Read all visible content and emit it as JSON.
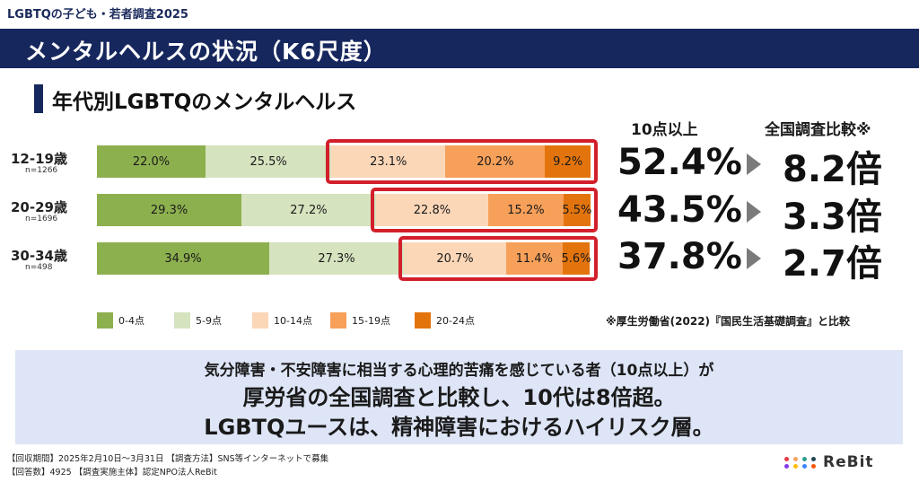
{
  "header": {
    "topline": "LGBTQの子ども・若者調査2025",
    "banner_title": "メンタルヘルスの状況（K6尺度）",
    "section_title": "年代別LGBTQのメンタルヘルス"
  },
  "colors": {
    "navy": "#16275d",
    "seg_0_4": "#8db04f",
    "seg_5_9": "#d6e3bf",
    "seg_10_14": "#fbd7b8",
    "seg_15_19": "#f7a05a",
    "seg_20_24": "#e3740d",
    "highlight": "#d21f2b"
  },
  "chart_data": {
    "type": "bar",
    "orientation": "horizontal-stacked-100",
    "categories": [
      "12-19歳",
      "20-29歳",
      "30-34歳"
    ],
    "sample_sizes": [
      "n=1266",
      "n=1696",
      "n=498"
    ],
    "series": [
      {
        "name": "0-4点",
        "values": [
          22.0,
          29.3,
          34.9
        ]
      },
      {
        "name": "5-9点",
        "values": [
          25.5,
          27.2,
          27.3
        ]
      },
      {
        "name": "10-14点",
        "values": [
          23.1,
          22.8,
          20.7
        ]
      },
      {
        "name": "15-19点",
        "values": [
          20.2,
          15.2,
          11.4
        ]
      },
      {
        "name": "20-24点",
        "values": [
          9.2,
          5.5,
          5.6
        ]
      }
    ],
    "value_labels": [
      [
        "22.0%",
        "25.5%",
        "23.1%",
        "20.2%",
        "9.2%"
      ],
      [
        "29.3%",
        "27.2%",
        "22.8%",
        "15.2%",
        "5.5%"
      ],
      [
        "34.9%",
        "27.3%",
        "20.7%",
        "11.4%",
        "5.6%"
      ]
    ],
    "legend_position": "bottom"
  },
  "summary_columns": {
    "head_10plus": "10点以上",
    "head_compare": "全国調査比較※",
    "pct_10plus": [
      "52.4%",
      "43.5%",
      "37.8%"
    ],
    "multiplier": [
      "8.2倍",
      "3.3倍",
      "2.7倍"
    ]
  },
  "note": "※厚生労働省(2022)『国民生活基礎調査』と比較",
  "summary": {
    "line1": "気分障害・不安障害に相当する心理的苦痛を感じている者（10点以上）が",
    "line2": "厚労省の全国調査と比較し、10代は8倍超。",
    "line3": "LGBTQユースは、精神障害におけるハイリスク層。"
  },
  "footer": {
    "line1": "【回収期間】2025年2月10日～3月31日 【調査方法】SNS等インターネットで募集",
    "line2": "【回答数】4925 【調査実施主体】認定NPO法人ReBit"
  },
  "logo": {
    "text": "ReBit"
  }
}
